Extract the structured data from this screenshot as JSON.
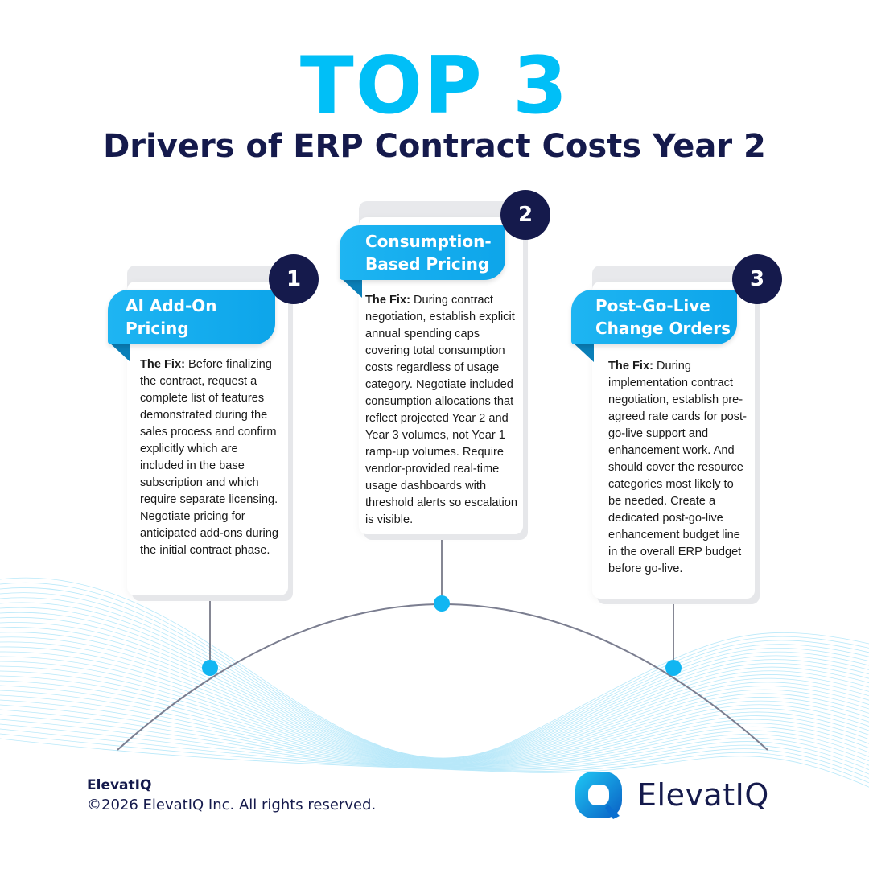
{
  "header": {
    "headline": "TOP 3",
    "subheading": "Drivers of ERP Contract Costs Year 2"
  },
  "cards": [
    {
      "number": "1",
      "title_line1": "AI Add-On",
      "title_line2": "Pricing",
      "fix_label": "The Fix:",
      "fix_text": " Before finalizing the contract, request a complete list of features demonstrated during the sales process and confirm explicitly which are included in the base subscription and which require separate licensing. Negotiate pricing for anticipated add-ons during the initial contract phase."
    },
    {
      "number": "2",
      "title_line1": "Consumption-",
      "title_line2": "Based Pricing",
      "fix_label": "The Fix:",
      "fix_text": " During contract negotiation, establish explicit annual spending caps covering total consumption costs regardless of usage category. Negotiate included consumption allocations that reflect projected Year 2 and Year 3 volumes, not Year 1 ramp-up volumes. Require vendor-provided real-time usage dashboards with threshold alerts so escalation is visible."
    },
    {
      "number": "3",
      "title_line1": "Post-Go-Live",
      "title_line2": "Change Orders",
      "fix_label": "The Fix:",
      "fix_text": " During implementation contract negotiation, establish pre-agreed rate cards for post-go-live support and enhancement work. And should cover the resource categories most likely to be needed. Create a dedicated post-go-live enhancement budget line in the overall ERP budget before go-live."
    }
  ],
  "footer": {
    "brand": "ElevatIQ",
    "copyright": "©2026 ElevatIQ Inc. All rights reserved."
  },
  "logo": {
    "text": "ElevatIQ",
    "icon": "magnifier-q-icon"
  },
  "colors": {
    "accent": "#00bff7",
    "navy": "#151a4c",
    "ribbon": "#1eb5f2"
  }
}
